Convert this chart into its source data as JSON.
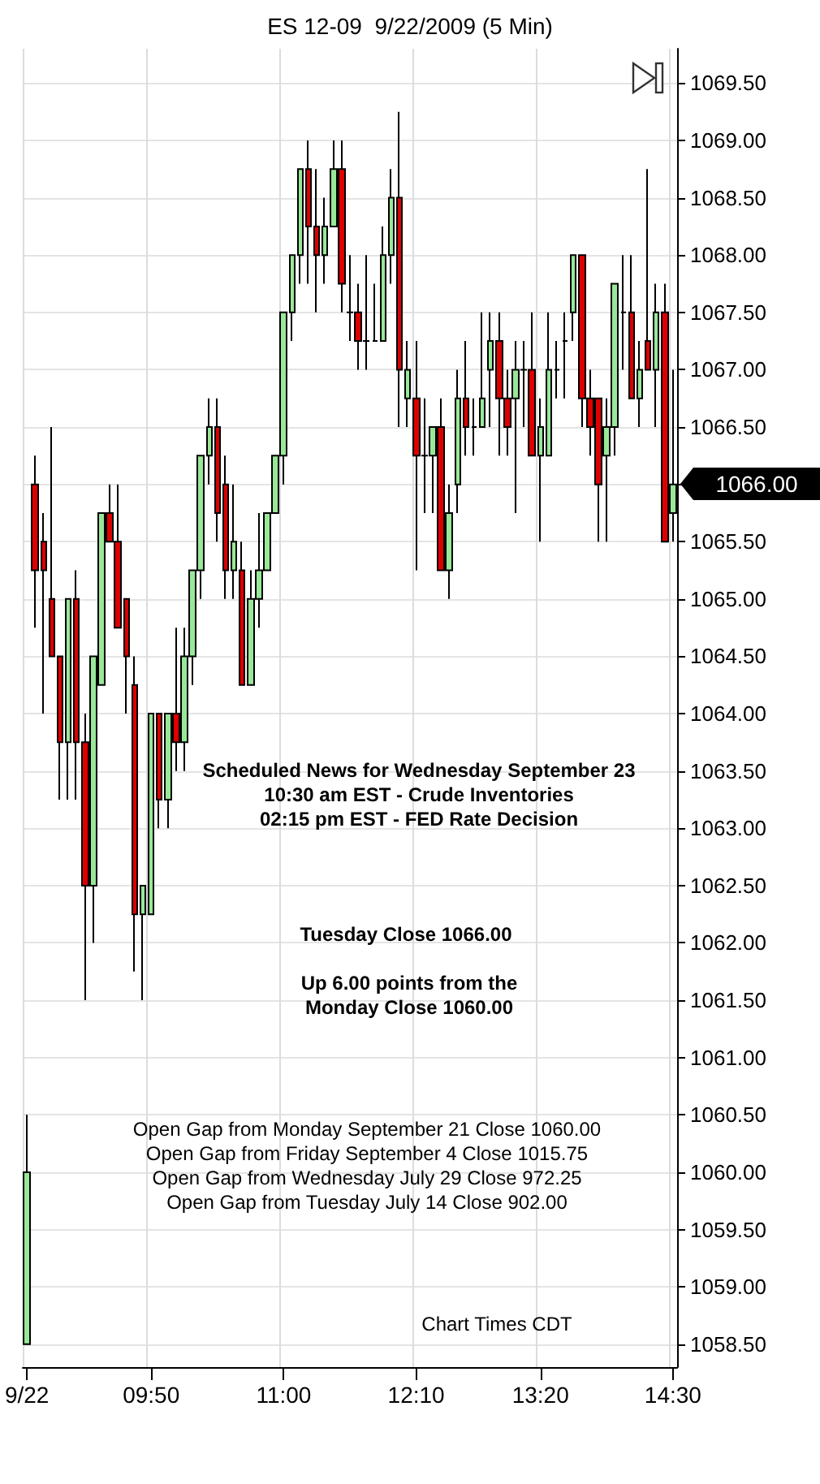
{
  "chart_data": {
    "type": "candlestick",
    "title": "ES 12-09  9/22/2009 (5 Min)",
    "categories": [
      "9/22",
      null,
      null,
      null,
      null,
      null,
      null,
      null,
      null,
      null,
      null,
      null,
      null,
      null,
      null,
      "09:50",
      null,
      null,
      null,
      null,
      null,
      null,
      null,
      null,
      null,
      null,
      null,
      null,
      null,
      null,
      null,
      "11:00",
      null,
      null,
      null,
      null,
      null,
      null,
      null,
      null,
      null,
      null,
      null,
      null,
      null,
      null,
      null,
      "12:10",
      null,
      null,
      null,
      null,
      null,
      null,
      null,
      null,
      null,
      null,
      null,
      null,
      null,
      null,
      "13:20",
      null,
      null,
      null,
      null,
      null,
      null,
      null,
      null,
      null,
      null,
      null,
      null,
      null,
      null,
      null,
      "14:30"
    ],
    "ohlc": [
      [
        1058.5,
        1060.5,
        1058.5,
        1060
      ],
      [
        1066,
        1066.25,
        1064.75,
        1065.25
      ],
      [
        1065.5,
        1065.75,
        1064,
        1065.25
      ],
      [
        1065,
        1066.5,
        1064.5,
        1064.5
      ],
      [
        1064.5,
        1064.5,
        1063.25,
        1063.75
      ],
      [
        1063.75,
        1065,
        1063.25,
        1065
      ],
      [
        1065,
        1065.25,
        1063.25,
        1063.75
      ],
      [
        1063.75,
        1064,
        1061.5,
        1062.5
      ],
      [
        1062.5,
        1064.5,
        1062,
        1064.5
      ],
      [
        1064.25,
        1065.75,
        1064.25,
        1065.75
      ],
      [
        1065.75,
        1066,
        1065.5,
        1065.5
      ],
      [
        1065.5,
        1066,
        1064.75,
        1064.75
      ],
      [
        1065,
        1065,
        1064,
        1064.5
      ],
      [
        1064.25,
        1064.5,
        1061.75,
        1062.25
      ],
      [
        1062.25,
        1062.5,
        1061.5,
        1062.5
      ],
      [
        1062.25,
        1064,
        1062.25,
        1064
      ],
      [
        1064,
        1064,
        1063,
        1063.25
      ],
      [
        1063.25,
        1064,
        1063,
        1064
      ],
      [
        1064,
        1064.75,
        1063.5,
        1063.75
      ],
      [
        1063.75,
        1064.75,
        1063.5,
        1064.5
      ],
      [
        1064.5,
        1065.25,
        1064.25,
        1065.25
      ],
      [
        1065.25,
        1066.25,
        1065,
        1066.25
      ],
      [
        1066.25,
        1066.75,
        1066,
        1066.5
      ],
      [
        1066.5,
        1066.75,
        1065.5,
        1065.75
      ],
      [
        1066,
        1066.25,
        1065,
        1065.25
      ],
      [
        1065.25,
        1066,
        1065,
        1065.5
      ],
      [
        1065.25,
        1065.5,
        1064.25,
        1064.25
      ],
      [
        1064.25,
        1065.25,
        1064.25,
        1065
      ],
      [
        1065,
        1065.75,
        1064.75,
        1065.25
      ],
      [
        1065.25,
        1065.75,
        1065.25,
        1065.75
      ],
      [
        1065.75,
        1066.25,
        1065.75,
        1066.25
      ],
      [
        1066.25,
        1067.5,
        1066,
        1067.5
      ],
      [
        1067.5,
        1068,
        1067.25,
        1068
      ],
      [
        1068,
        1068.75,
        1067.75,
        1068.75
      ],
      [
        1068.75,
        1069,
        1067.75,
        1068.25
      ],
      [
        1068.25,
        1068.75,
        1067.5,
        1068
      ],
      [
        1068,
        1068.5,
        1067.75,
        1068.25
      ],
      [
        1068.25,
        1069,
        1068.25,
        1068.75
      ],
      [
        1068.75,
        1069,
        1067.5,
        1067.75
      ],
      [
        1067.5,
        1068,
        1067.25,
        1067.5
      ],
      [
        1067.5,
        1067.75,
        1067,
        1067.25
      ],
      [
        1067.25,
        1068,
        1067,
        1067.25
      ],
      [
        1067.25,
        1067.75,
        1067.25,
        1067.25
      ],
      [
        1067.25,
        1068.25,
        1067.25,
        1068
      ],
      [
        1068,
        1068.75,
        1067.75,
        1068.5
      ],
      [
        1068.5,
        1069.25,
        1066.5,
        1067
      ],
      [
        1066.75,
        1067.25,
        1066.5,
        1067
      ],
      [
        1066.75,
        1067.25,
        1065.25,
        1066.25
      ],
      [
        1066.25,
        1066.75,
        1065.75,
        1066.25
      ],
      [
        1066.25,
        1066.5,
        1065.75,
        1066.5
      ],
      [
        1066.5,
        1066.75,
        1065.25,
        1065.25
      ],
      [
        1065.25,
        1066,
        1065,
        1065.75
      ],
      [
        1066,
        1067,
        1065.75,
        1066.75
      ],
      [
        1066.75,
        1067.25,
        1066.25,
        1066.5
      ],
      [
        1066.5,
        1066.75,
        1066.25,
        1066.5
      ],
      [
        1066.5,
        1067.5,
        1066.5,
        1066.75
      ],
      [
        1067,
        1067.5,
        1066.5,
        1067.25
      ],
      [
        1067.25,
        1067.5,
        1066.25,
        1066.75
      ],
      [
        1066.75,
        1067,
        1066.25,
        1066.5
      ],
      [
        1066.75,
        1067.25,
        1065.75,
        1067
      ],
      [
        1067,
        1067.25,
        1066.5,
        1067
      ],
      [
        1067,
        1067.5,
        1066.25,
        1066.25
      ],
      [
        1066.25,
        1066.75,
        1065.5,
        1066.5
      ],
      [
        1066.25,
        1067.5,
        1066.25,
        1067
      ],
      [
        1067,
        1067.25,
        1066.75,
        1067
      ],
      [
        1067.25,
        1067.5,
        1066.75,
        1067.25
      ],
      [
        1067.5,
        1068,
        1067.25,
        1068
      ],
      [
        1068,
        1068,
        1066.5,
        1066.75
      ],
      [
        1066.75,
        1067,
        1066.25,
        1066.5
      ],
      [
        1066.75,
        1066.75,
        1065.5,
        1066
      ],
      [
        1066.25,
        1066.75,
        1065.5,
        1066.5
      ],
      [
        1066.5,
        1067.75,
        1066.25,
        1067.75
      ],
      [
        1067.5,
        1068,
        1067,
        1067.5
      ],
      [
        1067.5,
        1068,
        1066.75,
        1066.75
      ],
      [
        1066.75,
        1067.25,
        1066.5,
        1067
      ],
      [
        1067.25,
        1068.75,
        1067,
        1067
      ],
      [
        1067,
        1067.75,
        1066.5,
        1067.5
      ],
      [
        1067.5,
        1067.75,
        1065.5,
        1065.5
      ],
      [
        1065.75,
        1067,
        1065.5,
        1066
      ]
    ],
    "colors": [
      "#98e898",
      "#dd0000",
      "#dd0000",
      "#dd0000",
      "#dd0000",
      "#98e898",
      "#dd0000",
      "#dd0000",
      "#98e898",
      "#98e898",
      "#dd0000",
      "#dd0000",
      "#dd0000",
      "#dd0000",
      "#98e898",
      "#98e898",
      "#dd0000",
      "#98e898",
      "#dd0000",
      "#98e898",
      "#98e898",
      "#98e898",
      "#98e898",
      "#dd0000",
      "#dd0000",
      "#98e898",
      "#dd0000",
      "#98e898",
      "#98e898",
      "#98e898",
      "#98e898",
      "#98e898",
      "#98e898",
      "#98e898",
      "#dd0000",
      "#dd0000",
      "#98e898",
      "#98e898",
      "#dd0000",
      "#000000",
      "#dd0000",
      "#000000",
      "#000000",
      "#98e898",
      "#98e898",
      "#dd0000",
      "#98e898",
      "#dd0000",
      "#000000",
      "#98e898",
      "#dd0000",
      "#98e898",
      "#98e898",
      "#dd0000",
      "#000000",
      "#98e898",
      "#98e898",
      "#dd0000",
      "#dd0000",
      "#98e898",
      "#000000",
      "#dd0000",
      "#98e898",
      "#98e898",
      "#000000",
      "#000000",
      "#98e898",
      "#dd0000",
      "#dd0000",
      "#dd0000",
      "#98e898",
      "#98e898",
      "#000000",
      "#dd0000",
      "#98e898",
      "#dd0000",
      "#98e898",
      "#dd0000",
      "#98e898"
    ],
    "ylim": [
      1058.3,
      1069.8
    ],
    "yticks": [
      {
        "value": 1058.5,
        "label": "1058.50"
      },
      {
        "value": 1059,
        "label": "1059.00"
      },
      {
        "value": 1059.5,
        "label": "1059.50"
      },
      {
        "value": 1060,
        "label": "1060.00"
      },
      {
        "value": 1060.5,
        "label": "1060.50"
      },
      {
        "value": 1061,
        "label": "1061.00"
      },
      {
        "value": 1061.5,
        "label": "1061.50"
      },
      {
        "value": 1062,
        "label": "1062.00"
      },
      {
        "value": 1062.5,
        "label": "1062.50"
      },
      {
        "value": 1063,
        "label": "1063.00"
      },
      {
        "value": 1063.5,
        "label": "1063.50"
      },
      {
        "value": 1064,
        "label": "1064.00"
      },
      {
        "value": 1064.5,
        "label": "1064.50"
      },
      {
        "value": 1065,
        "label": "1065.00"
      },
      {
        "value": 1065.5,
        "label": "1065.50"
      },
      {
        "value": 1066,
        "label": null
      },
      {
        "value": 1066.5,
        "label": "1066.50"
      },
      {
        "value": 1067,
        "label": "1067.00"
      },
      {
        "value": 1067.5,
        "label": "1067.50"
      },
      {
        "value": 1068,
        "label": "1068.00"
      },
      {
        "value": 1068.5,
        "label": "1068.50"
      },
      {
        "value": 1069,
        "label": "1069.00"
      },
      {
        "value": 1069.5,
        "label": "1069.50"
      }
    ],
    "grid": true,
    "annotations": [
      "1066.00",
      "Scheduled News for Wednesday September 23\n10:30 am EST - Crude Inventories\n02:15 pm EST - FED Rate Decision",
      "Tuesday Close 1066.00",
      "Up 6.00 points from the\nMonday Close 1060.00",
      "Open Gap from Monday September 21 Close 1060.00\nOpen Gap from Friday September 4 Close 1015.75\nOpen Gap from Wednesday July 29 Close 972.25\nOpen Gap from Tuesday July 14 Close 902.00",
      "Chart Times CDT"
    ]
  }
}
